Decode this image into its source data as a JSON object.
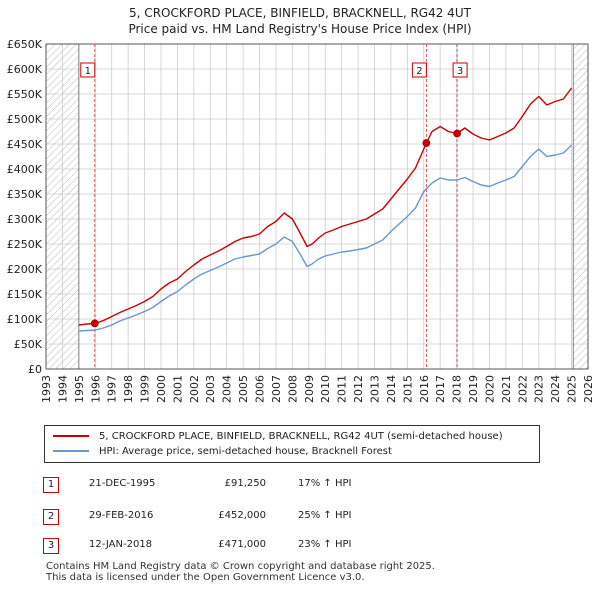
{
  "title_line1": "5, CROCKFORD PLACE, BINFIELD, BRACKNELL, RG42 4UT",
  "title_line2": "Price paid vs. HM Land Registry's House Price Index (HPI)",
  "colors": {
    "property": "#cc0000",
    "hpi": "#6b97cf",
    "grid": "#cccccc",
    "marker_line": "#dd4444"
  },
  "chart_data": {
    "type": "line",
    "xlim": [
      1993,
      2026
    ],
    "ylim": [
      0,
      650000
    ],
    "x_ticks": [
      1993,
      1994,
      1995,
      1996,
      1997,
      1998,
      1999,
      2000,
      2001,
      2002,
      2003,
      2004,
      2005,
      2006,
      2007,
      2008,
      2009,
      2010,
      2011,
      2012,
      2013,
      2014,
      2015,
      2016,
      2017,
      2018,
      2019,
      2020,
      2021,
      2022,
      2023,
      2024,
      2025,
      2026
    ],
    "y_ticks": [
      0,
      50000,
      100000,
      150000,
      200000,
      250000,
      300000,
      350000,
      400000,
      450000,
      500000,
      550000,
      600000,
      650000
    ],
    "y_tick_labels": [
      "£0",
      "£50K",
      "£100K",
      "£150K",
      "£200K",
      "£250K",
      "£300K",
      "£350K",
      "£400K",
      "£450K",
      "£500K",
      "£550K",
      "£600K",
      "£650K"
    ],
    "hatched_ranges": [
      [
        1993,
        1995.0
      ],
      [
        2025.1,
        2026
      ]
    ],
    "series": [
      {
        "name": "5, CROCKFORD PLACE, BINFIELD, BRACKNELL, RG42 4UT (semi-detached house)",
        "x": [
          1995.0,
          1995.5,
          1995.97,
          1996.5,
          1997.0,
          1997.5,
          1998.0,
          1998.5,
          1999.0,
          1999.5,
          2000.0,
          2000.5,
          2001.0,
          2001.5,
          2002.0,
          2002.5,
          2003.0,
          2003.5,
          2004.0,
          2004.5,
          2005.0,
          2005.5,
          2006.0,
          2006.5,
          2007.0,
          2007.5,
          2008.0,
          2008.5,
          2008.9,
          2009.2,
          2009.6,
          2010.0,
          2010.5,
          2011.0,
          2011.5,
          2012.0,
          2012.5,
          2013.0,
          2013.5,
          2014.0,
          2014.5,
          2015.0,
          2015.5,
          2016.16,
          2016.5,
          2017.0,
          2017.5,
          2018.03,
          2018.5,
          2019.0,
          2019.5,
          2020.0,
          2020.5,
          2021.0,
          2021.5,
          2022.0,
          2022.5,
          2023.0,
          2023.5,
          2024.0,
          2024.5,
          2025.0
        ],
        "y": [
          88000,
          90000,
          91250,
          97000,
          105000,
          113000,
          120000,
          127000,
          135000,
          145000,
          160000,
          172000,
          180000,
          195000,
          208000,
          220000,
          228000,
          236000,
          245000,
          255000,
          262000,
          265000,
          270000,
          285000,
          295000,
          312000,
          300000,
          270000,
          245000,
          250000,
          262000,
          272000,
          278000,
          285000,
          290000,
          295000,
          300000,
          310000,
          320000,
          340000,
          360000,
          380000,
          402000,
          452000,
          475000,
          485000,
          475000,
          471000,
          482000,
          470000,
          462000,
          458000,
          465000,
          472000,
          482000,
          505000,
          530000,
          545000,
          528000,
          535000,
          540000,
          562000
        ]
      },
      {
        "name": "HPI: Average price, semi-detached house, Bracknell Forest",
        "x": [
          1995.0,
          1995.5,
          1996.0,
          1996.5,
          1997.0,
          1997.5,
          1998.0,
          1998.5,
          1999.0,
          1999.5,
          2000.0,
          2000.5,
          2001.0,
          2001.5,
          2002.0,
          2002.5,
          2003.0,
          2003.5,
          2004.0,
          2004.5,
          2005.0,
          2005.5,
          2006.0,
          2006.5,
          2007.0,
          2007.5,
          2008.0,
          2008.5,
          2008.9,
          2009.2,
          2009.6,
          2010.0,
          2010.5,
          2011.0,
          2011.5,
          2012.0,
          2012.5,
          2013.0,
          2013.5,
          2014.0,
          2014.5,
          2015.0,
          2015.5,
          2016.0,
          2016.5,
          2017.0,
          2017.5,
          2018.0,
          2018.5,
          2019.0,
          2019.5,
          2020.0,
          2020.5,
          2021.0,
          2021.5,
          2022.0,
          2022.5,
          2023.0,
          2023.5,
          2024.0,
          2024.5,
          2025.0
        ],
        "y": [
          76000,
          77000,
          78000,
          82000,
          88000,
          96000,
          102000,
          108000,
          115000,
          123000,
          135000,
          146000,
          155000,
          168000,
          180000,
          190000,
          197000,
          204000,
          212000,
          220000,
          224000,
          227000,
          230000,
          241000,
          250000,
          264000,
          255000,
          228000,
          205000,
          210000,
          220000,
          226000,
          230000,
          234000,
          236000,
          239000,
          242000,
          250000,
          258000,
          275000,
          290000,
          305000,
          322000,
          355000,
          372000,
          382000,
          378000,
          378000,
          383000,
          375000,
          368000,
          365000,
          372000,
          378000,
          385000,
          405000,
          425000,
          440000,
          425000,
          428000,
          432000,
          448000
        ]
      }
    ],
    "markers": [
      {
        "label": "1",
        "x": 1995.97,
        "y": 91250
      },
      {
        "label": "2",
        "x": 2016.16,
        "y": 452000
      },
      {
        "label": "3",
        "x": 2018.03,
        "y": 471000
      }
    ]
  },
  "legend": {
    "property_label": "5, CROCKFORD PLACE, BINFIELD, BRACKNELL, RG42 4UT (semi-detached house)",
    "hpi_label": "HPI: Average price, semi-detached house, Bracknell Forest"
  },
  "sales": [
    {
      "num": "1",
      "date": "21-DEC-1995",
      "price": "£91,250",
      "hpi": "17% ↑ HPI"
    },
    {
      "num": "2",
      "date": "29-FEB-2016",
      "price": "£452,000",
      "hpi": "25% ↑ HPI"
    },
    {
      "num": "3",
      "date": "12-JAN-2018",
      "price": "£471,000",
      "hpi": "23% ↑ HPI"
    }
  ],
  "footer_line1": "Contains HM Land Registry data © Crown copyright and database right 2025.",
  "footer_line2": "This data is licensed under the Open Government Licence v3.0."
}
